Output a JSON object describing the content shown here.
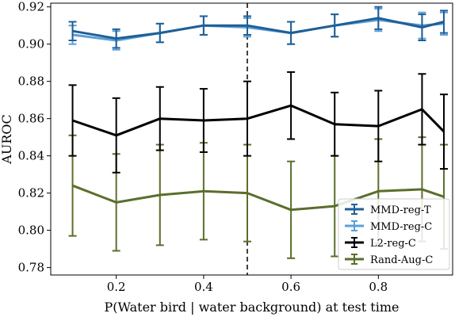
{
  "chart_data": {
    "type": "line",
    "title": "",
    "xlabel": "P(Water bird | water background) at test time",
    "ylabel": "AUROC",
    "xlim": [
      0.05,
      0.97
    ],
    "ylim": [
      0.776,
      0.922
    ],
    "xticks": [
      0.2,
      0.4,
      0.6,
      0.8
    ],
    "xtick_labels": [
      "0.2",
      "0.4",
      "0.6",
      "0.8"
    ],
    "yticks": [
      0.78,
      0.8,
      0.82,
      0.84,
      0.86,
      0.88,
      0.9,
      0.92
    ],
    "ytick_labels": [
      "0.78",
      "0.80",
      "0.82",
      "0.84",
      "0.86",
      "0.88",
      "0.90",
      "0.92"
    ],
    "vline": {
      "x": 0.5,
      "style": "dashed"
    },
    "grid": false,
    "legend_position": "lower-right",
    "x": [
      0.1,
      0.2,
      0.3,
      0.4,
      0.5,
      0.6,
      0.7,
      0.8,
      0.9,
      0.95
    ],
    "series": [
      {
        "name": "MMD-reg-T",
        "color": "#1f5f96",
        "values": [
          0.907,
          0.903,
          0.906,
          0.91,
          0.91,
          0.906,
          0.91,
          0.914,
          0.909,
          0.912
        ],
        "errors": [
          0.005,
          0.005,
          0.005,
          0.005,
          0.005,
          0.006,
          0.006,
          0.006,
          0.007,
          0.006
        ]
      },
      {
        "name": "MMD-reg-C",
        "color": "#5b9fd6",
        "values": [
          0.905,
          0.902,
          0.906,
          0.91,
          0.909,
          0.906,
          0.91,
          0.913,
          0.91,
          0.911
        ],
        "errors": [
          0.005,
          0.005,
          0.005,
          0.005,
          0.005,
          0.006,
          0.006,
          0.006,
          0.007,
          0.006
        ]
      },
      {
        "name": "L2-reg-C",
        "color": "#000000",
        "values": [
          0.859,
          0.851,
          0.86,
          0.859,
          0.86,
          0.867,
          0.857,
          0.856,
          0.865,
          0.853
        ],
        "errors": [
          0.019,
          0.02,
          0.017,
          0.017,
          0.02,
          0.018,
          0.017,
          0.019,
          0.019,
          0.02
        ]
      },
      {
        "name": "Rand-Aug-C",
        "color": "#5a6e2b",
        "values": [
          0.824,
          0.815,
          0.819,
          0.821,
          0.82,
          0.811,
          0.813,
          0.821,
          0.822,
          0.818
        ],
        "errors": [
          0.027,
          0.026,
          0.027,
          0.026,
          0.026,
          0.026,
          0.027,
          0.028,
          0.028,
          0.028
        ]
      }
    ]
  }
}
